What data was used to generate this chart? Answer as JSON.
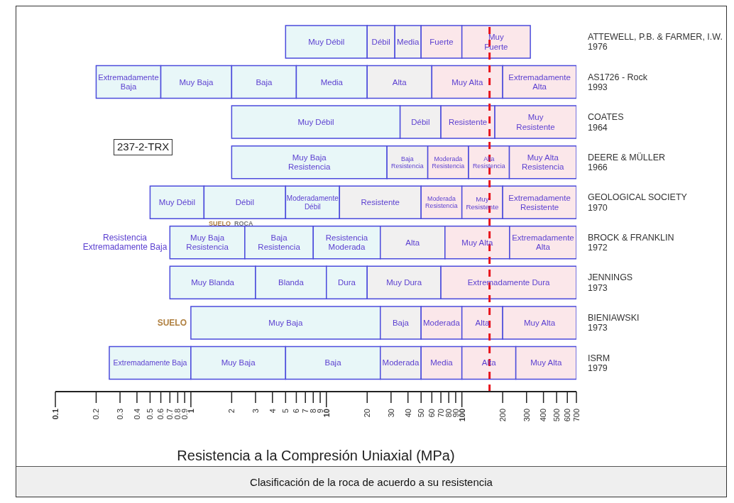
{
  "chart_data": {
    "type": "bar",
    "orientation": "horizontal",
    "log": "x",
    "title": "Clasificación de la roca de acuerdo a su resistencia",
    "xlabel": "Resistencia a la Compresión Uniaxial (MPa)",
    "categories": [
      "ATTEWELL, P.B. & FARMER, I.W.\n1976",
      "AS1726 - Rock\n1993",
      "COATES\n1964",
      "DEERE & MÜLLER\n1966",
      "GEOLOGICAL SOCIETY\n1970",
      "BROCK & FRANKLIN\n1972",
      "JENNINGS\n1973",
      "BIENIAWSKI\n1973",
      "ISRM\n1979"
    ],
    "xlim": [
      0.1,
      700
    ],
    "xticks": [
      0.1,
      0.2,
      0.3,
      0.4,
      0.5,
      0.6,
      0.7,
      0.8,
      0.9,
      1,
      2,
      3,
      4,
      5,
      6,
      7,
      8,
      9,
      10,
      20,
      30,
      40,
      50,
      60,
      70,
      80,
      90,
      100,
      200,
      300,
      400,
      500,
      600,
      700
    ],
    "series": [
      {
        "base": [
          5,
          0.2,
          2,
          2,
          0.5,
          0.7,
          0.7,
          1,
          0.25
        ],
        "values": [
          15,
          0.4,
          33,
          26,
          0.75,
          1.8,
          2.3,
          24,
          0.75
        ],
        "value_labels": [
          "Muy Débil",
          "Extremadamente\nBaja",
          "Muy Débil",
          "Muy Baja\nResistencia",
          "Muy Débil",
          "Muy Baja\nResistencia",
          "Muy Blanda",
          "Muy Baja",
          "Extremadamente Baja"
        ],
        "colors": [
          "#e8f7f8",
          "#e8f7f8",
          "#e8f7f8",
          "#e8f7f8",
          "#e8f7f8",
          "#e8f7f8",
          "#e8f7f8",
          "#e8f7f8",
          "#e8f7f8"
        ]
      },
      {
        "base": [
          20,
          0.6,
          35,
          28,
          1.25,
          2.5,
          3,
          25,
          1
        ],
        "values": [
          12,
          1.4,
          35,
          28,
          3.75,
          5.5,
          7,
          25,
          4
        ],
        "value_labels": [
          "Débil",
          "Muy Baja",
          "Débil",
          "Baja\nResistencia",
          "Débil",
          "Baja\nResistencia",
          "Blanda",
          "Baja",
          "Muy Baja"
        ],
        "colors": [
          "#f1f0f0",
          "#e8f7f8",
          "#f1f0f0",
          "#f1f0f0",
          "#e8f7f8",
          "#e8f7f8",
          "#e8f7f8",
          "#f1f0f0",
          "#e8f7f8"
        ]
      },
      {
        "base": [
          32,
          2,
          70,
          56,
          5,
          8,
          10,
          50,
          5
        ],
        "values": [
          18,
          4,
          105,
          56,
          7.5,
          17,
          10,
          50,
          20
        ],
        "value_labels": [
          "Media",
          "Baja",
          "Resistente",
          "Moderada\nResistencia",
          "Moderadamente\nDébil",
          "Resistencia\nModerada",
          "Dura",
          "Moderada",
          "Baja"
        ],
        "colors": [
          "#f1f0f0",
          "#e8f7f8",
          "#fbe7ea",
          "#fbe7ea",
          "#e8f7f8",
          "#e8f7f8",
          "#e8f7f8",
          "#fbe7ea",
          "#e8f7f8"
        ]
      },
      {
        "base": [
          50,
          6,
          175,
          112,
          12.5,
          25,
          20,
          100,
          25
        ],
        "values": [
          50,
          14,
          525,
          112,
          37.5,
          50,
          50,
          100,
          25
        ],
        "value_labels": [
          "Fuerte",
          "Media",
          "Muy\nResistente",
          "Alta\nResistencia",
          "Resistente",
          "Alta",
          "Muy Dura",
          "Alta",
          "Moderada"
        ],
        "colors": [
          "#fbe7ea",
          "#e8f7f8",
          "#fbe7ea",
          "#fbe7ea",
          "#f1f0f0",
          "#f1f0f0",
          "#f1f0f0",
          "#fbe7ea",
          "#f1f0f0"
        ]
      },
      {
        "base": [
          100,
          20,
          null,
          224,
          50,
          75,
          70,
          200,
          50
        ],
        "values": [
          220,
          40,
          null,
          476,
          50,
          150,
          630,
          500,
          50
        ],
        "value_labels": [
          "Muy\nFuerte",
          "Alta",
          null,
          "Muy Alta\nResistencia",
          "Moderada\nResistencia",
          "Muy Alta",
          "Extremadamente Dura",
          "Muy Alta",
          "Media"
        ],
        "colors": [
          "#fbe7ea",
          "#f1f0f0",
          null,
          "#fbe7ea",
          "#fbe7ea",
          "#fbe7ea",
          "#fbe7ea",
          "#fbe7ea",
          "#fbe7ea"
        ]
      },
      {
        "base": [
          null,
          60,
          null,
          null,
          100,
          225,
          null,
          null,
          100
        ],
        "values": [
          null,
          140,
          null,
          null,
          100,
          475,
          null,
          null,
          150
        ],
        "value_labels": [
          null,
          "Muy Alta",
          null,
          null,
          "Muy\nResistente",
          "Extremadamente\nAlta",
          null,
          null,
          "Alta"
        ],
        "colors": [
          null,
          "#fbe7ea",
          null,
          null,
          "#fbe7ea",
          "#fbe7ea",
          null,
          null,
          "#fbe7ea"
        ]
      },
      {
        "base": [
          null,
          200,
          null,
          null,
          200,
          null,
          null,
          null,
          250
        ],
        "values": [
          null,
          500,
          null,
          null,
          500,
          null,
          null,
          null,
          450
        ],
        "value_labels": [
          null,
          "Extremadamente\nAlta",
          null,
          null,
          "Extremadamente\nResistente",
          null,
          null,
          null,
          "Muy Alta"
        ],
        "colors": [
          null,
          "#fbe7ea",
          null,
          null,
          "#fbe7ea",
          null,
          null,
          null,
          "#fbe7ea"
        ]
      }
    ],
    "ref_lines": [
      {
        "axis": "x",
        "value": 160,
        "color": "#e8121b",
        "line_style": "dashed"
      }
    ],
    "annotations": [
      "237-2-TRX",
      "SUELO",
      "ROCA",
      "Resistencia\nExtremadamente Baja",
      "SUELO"
    ]
  }
}
